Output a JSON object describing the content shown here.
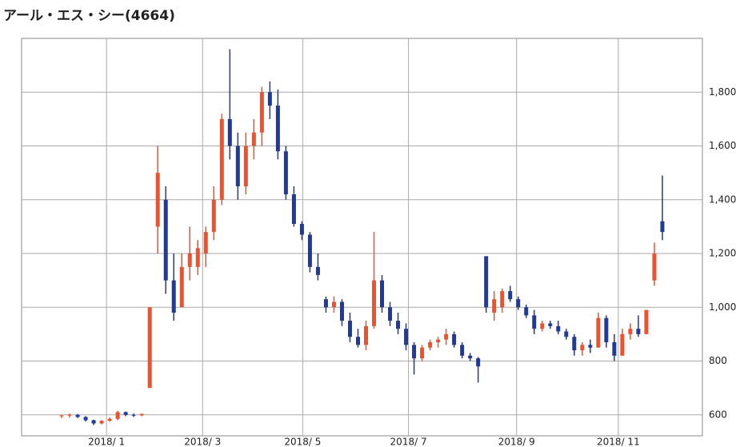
{
  "chart_data": {
    "type": "candlestick",
    "title": "アール・エス・シー(4664)",
    "categories": [
      null,
      null,
      null,
      null,
      null,
      null,
      null,
      null,
      null,
      null,
      null,
      null,
      null,
      null,
      null,
      null,
      null,
      null,
      null,
      null,
      null,
      null,
      null,
      null,
      null,
      null,
      null,
      null,
      null,
      null,
      null,
      null,
      null,
      null,
      null,
      null,
      null,
      null,
      null,
      null,
      null,
      null,
      null,
      null,
      null,
      null,
      null,
      null,
      null,
      null,
      null,
      null,
      null,
      null,
      null,
      null,
      null,
      null,
      null,
      null,
      null,
      null,
      null,
      null,
      null,
      null,
      null,
      null,
      null,
      null,
      null,
      null,
      null,
      null,
      null,
      null
    ],
    "open": [
      595,
      598,
      600,
      592,
      580,
      568,
      578,
      585,
      610,
      600,
      598,
      700,
      1300,
      1400,
      1100,
      1000,
      1150,
      1150,
      1200,
      1280,
      1400,
      1700,
      1600,
      1450,
      1600,
      1650,
      1800,
      1750,
      1580,
      1420,
      1310,
      1270,
      1150,
      1030,
      1000,
      1020,
      950,
      890,
      860,
      930,
      1100,
      1000,
      950,
      920,
      860,
      810,
      850,
      870,
      880,
      900,
      860,
      820,
      810,
      1190,
      980,
      1000,
      1060,
      1030,
      1000,
      970,
      920,
      940,
      930,
      910,
      890,
      840,
      860,
      850,
      960,
      870,
      820,
      900,
      920,
      900,
      1100,
      1320
    ],
    "high": [
      600,
      605,
      603,
      595,
      582,
      580,
      590,
      615,
      612,
      605,
      605,
      1000,
      1600,
      1450,
      1200,
      1200,
      1300,
      1250,
      1300,
      1450,
      1720,
      1960,
      1650,
      1650,
      1700,
      1820,
      1840,
      1810,
      1600,
      1450,
      1320,
      1280,
      1200,
      1040,
      1040,
      1030,
      980,
      920,
      950,
      1280,
      1120,
      1020,
      980,
      940,
      870,
      860,
      880,
      890,
      920,
      910,
      870,
      830,
      815,
      1190,
      1060,
      1070,
      1080,
      1040,
      1010,
      990,
      950,
      950,
      950,
      920,
      900,
      870,
      880,
      980,
      970,
      900,
      920,
      940,
      970,
      990,
      1240,
      1490
    ],
    "low": [
      588,
      590,
      588,
      575,
      562,
      565,
      575,
      580,
      595,
      592,
      595,
      700,
      1200,
      1050,
      950,
      1000,
      1100,
      1120,
      1150,
      1250,
      1380,
      1550,
      1400,
      1420,
      1550,
      1600,
      1700,
      1550,
      1400,
      1300,
      1250,
      1130,
      1100,
      980,
      980,
      930,
      870,
      850,
      840,
      920,
      980,
      930,
      900,
      840,
      750,
      800,
      840,
      850,
      860,
      850,
      810,
      800,
      720,
      980,
      950,
      980,
      1020,
      990,
      960,
      900,
      910,
      920,
      900,
      880,
      820,
      820,
      830,
      850,
      850,
      800,
      820,
      880,
      890,
      900,
      1080,
      1250
    ],
    "close": [
      598,
      600,
      592,
      580,
      568,
      578,
      585,
      610,
      600,
      598,
      603,
      1000,
      1500,
      1100,
      980,
      1150,
      1200,
      1220,
      1280,
      1400,
      1700,
      1600,
      1450,
      1600,
      1650,
      1800,
      1750,
      1580,
      1420,
      1310,
      1270,
      1150,
      1120,
      1000,
      1020,
      950,
      890,
      860,
      930,
      1100,
      1000,
      950,
      920,
      860,
      810,
      850,
      870,
      880,
      900,
      860,
      820,
      810,
      780,
      1000,
      1030,
      1060,
      1030,
      1000,
      970,
      920,
      940,
      930,
      910,
      890,
      840,
      860,
      850,
      960,
      870,
      820,
      900,
      920,
      900,
      990,
      1200,
      1280
    ],
    "up_color": "#f0502a",
    "down_color": "#1f3a9a",
    "xlim": [
      -5,
      80
    ],
    "xticks": [
      {
        "value": 5.6,
        "label": "2018/ 1"
      },
      {
        "value": 17.6,
        "label": "2018/ 3"
      },
      {
        "value": 30.1,
        "label": "2018/ 5"
      },
      {
        "value": 43.3,
        "label": "2018/ 7"
      },
      {
        "value": 56.8,
        "label": "2018/ 9"
      },
      {
        "value": 69.5,
        "label": "2018/ 11"
      }
    ],
    "ylim": [
      522,
      2000
    ],
    "yticks": [
      600,
      800,
      {
        "value": 1000,
        "label": "1,000"
      },
      {
        "value": 1200,
        "label": "1,200"
      },
      {
        "value": 1400,
        "label": "1,400"
      },
      {
        "value": 1600,
        "label": "1,600"
      },
      {
        "value": 1800,
        "label": "1,800"
      }
    ],
    "grid": true
  }
}
